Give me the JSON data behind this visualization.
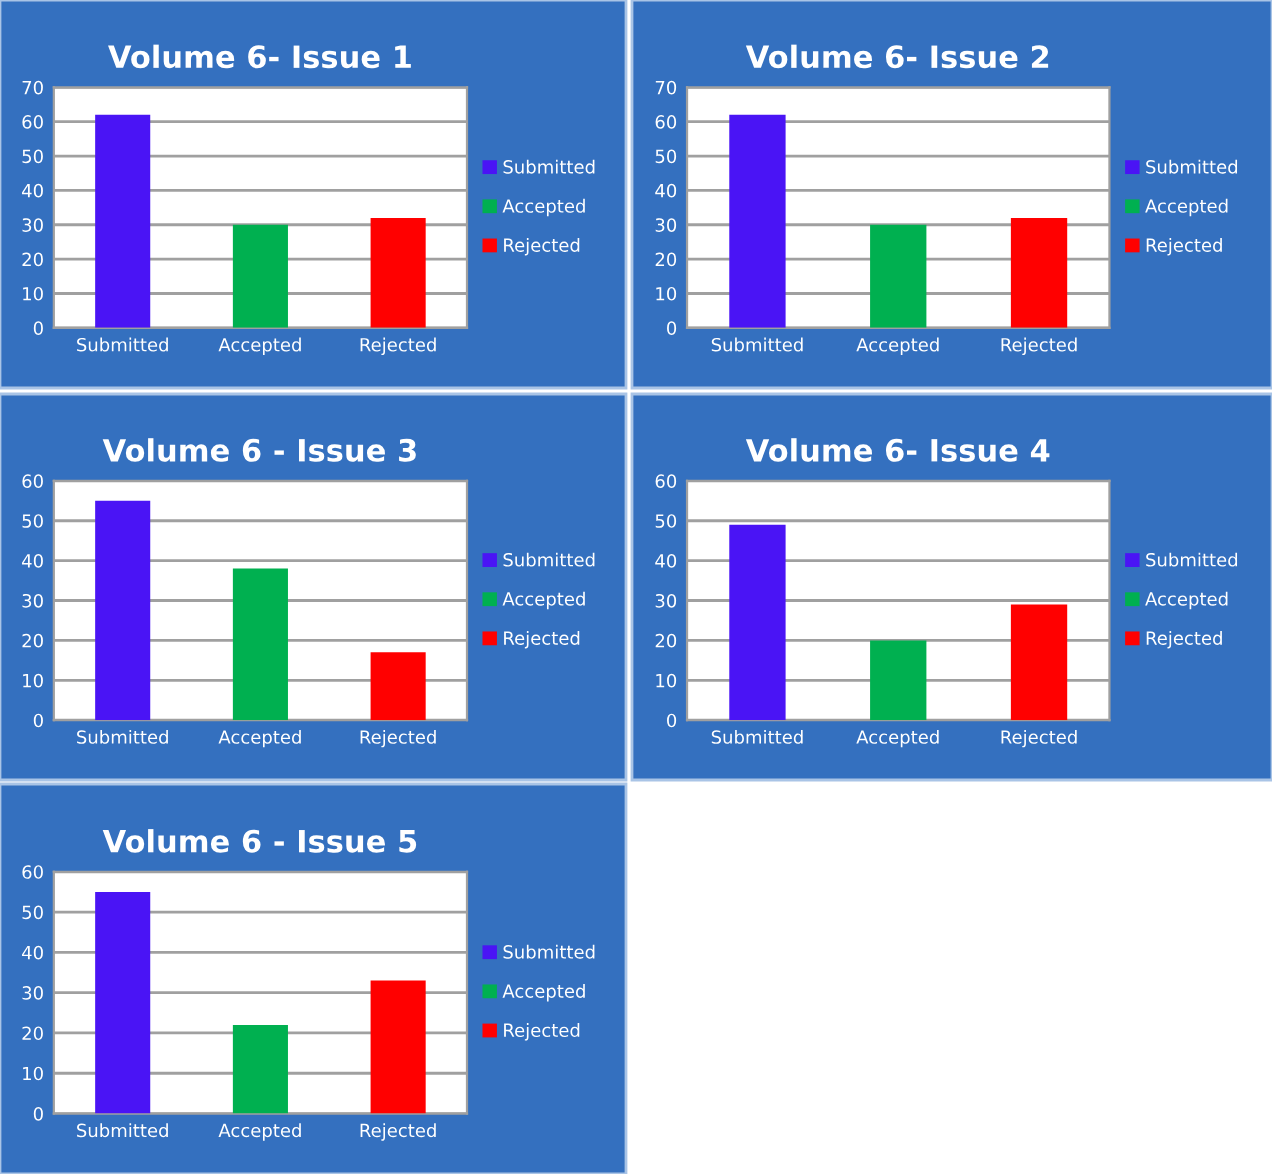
{
  "chart_data": [
    {
      "type": "bar",
      "title": "Volume 6- Issue 1",
      "categories": [
        "Submitted",
        "Accepted",
        "Rejected"
      ],
      "series": [
        {
          "name": "Submitted",
          "color": "#4a14f5",
          "values": [
            62,
            null,
            null
          ]
        },
        {
          "name": "Accepted",
          "color": "#00b050",
          "values": [
            null,
            30,
            null
          ]
        },
        {
          "name": "Rejected",
          "color": "#ff0000",
          "values": [
            null,
            null,
            32
          ]
        }
      ],
      "ylim": [
        0,
        70
      ],
      "yticks": [
        0,
        10,
        20,
        30,
        40,
        50,
        60,
        70
      ],
      "grid": "y",
      "legend": "right"
    },
    {
      "type": "bar",
      "title": "Volume 6- Issue 2",
      "categories": [
        "Submitted",
        "Accepted",
        "Rejected"
      ],
      "series": [
        {
          "name": "Submitted",
          "color": "#4a14f5",
          "values": [
            62,
            null,
            null
          ]
        },
        {
          "name": "Accepted",
          "color": "#00b050",
          "values": [
            null,
            30,
            null
          ]
        },
        {
          "name": "Rejected",
          "color": "#ff0000",
          "values": [
            null,
            null,
            32
          ]
        }
      ],
      "ylim": [
        0,
        70
      ],
      "yticks": [
        0,
        10,
        20,
        30,
        40,
        50,
        60,
        70
      ],
      "grid": "y",
      "legend": "right"
    },
    {
      "type": "bar",
      "title": "Volume 6 - Issue 3",
      "categories": [
        "Submitted",
        "Accepted",
        "Rejected"
      ],
      "series": [
        {
          "name": "Submitted",
          "color": "#4a14f5",
          "values": [
            55,
            null,
            null
          ]
        },
        {
          "name": "Accepted",
          "color": "#00b050",
          "values": [
            null,
            38,
            null
          ]
        },
        {
          "name": "Rejected",
          "color": "#ff0000",
          "values": [
            null,
            null,
            17
          ]
        }
      ],
      "ylim": [
        0,
        60
      ],
      "yticks": [
        0,
        10,
        20,
        30,
        40,
        50,
        60
      ],
      "grid": "y",
      "legend": "right"
    },
    {
      "type": "bar",
      "title": "Volume 6- Issue 4",
      "categories": [
        "Submitted",
        "Accepted",
        "Rejected"
      ],
      "series": [
        {
          "name": "Submitted",
          "color": "#4a14f5",
          "values": [
            49,
            null,
            null
          ]
        },
        {
          "name": "Accepted",
          "color": "#00b050",
          "values": [
            null,
            20,
            null
          ]
        },
        {
          "name": "Rejected",
          "color": "#ff0000",
          "values": [
            null,
            null,
            29
          ]
        }
      ],
      "ylim": [
        0,
        60
      ],
      "yticks": [
        0,
        10,
        20,
        30,
        40,
        50,
        60
      ],
      "grid": "y",
      "legend": "right"
    },
    {
      "type": "bar",
      "title": "Volume 6 - Issue 5",
      "categories": [
        "Submitted",
        "Accepted",
        "Rejected"
      ],
      "series": [
        {
          "name": "Submitted",
          "color": "#4a14f5",
          "values": [
            55,
            null,
            null
          ]
        },
        {
          "name": "Accepted",
          "color": "#00b050",
          "values": [
            null,
            22,
            null
          ]
        },
        {
          "name": "Rejected",
          "color": "#ff0000",
          "values": [
            null,
            null,
            33
          ]
        }
      ],
      "ylim": [
        0,
        60
      ],
      "yticks": [
        0,
        10,
        20,
        30,
        40,
        50,
        60
      ],
      "grid": "y",
      "legend": "right"
    }
  ]
}
